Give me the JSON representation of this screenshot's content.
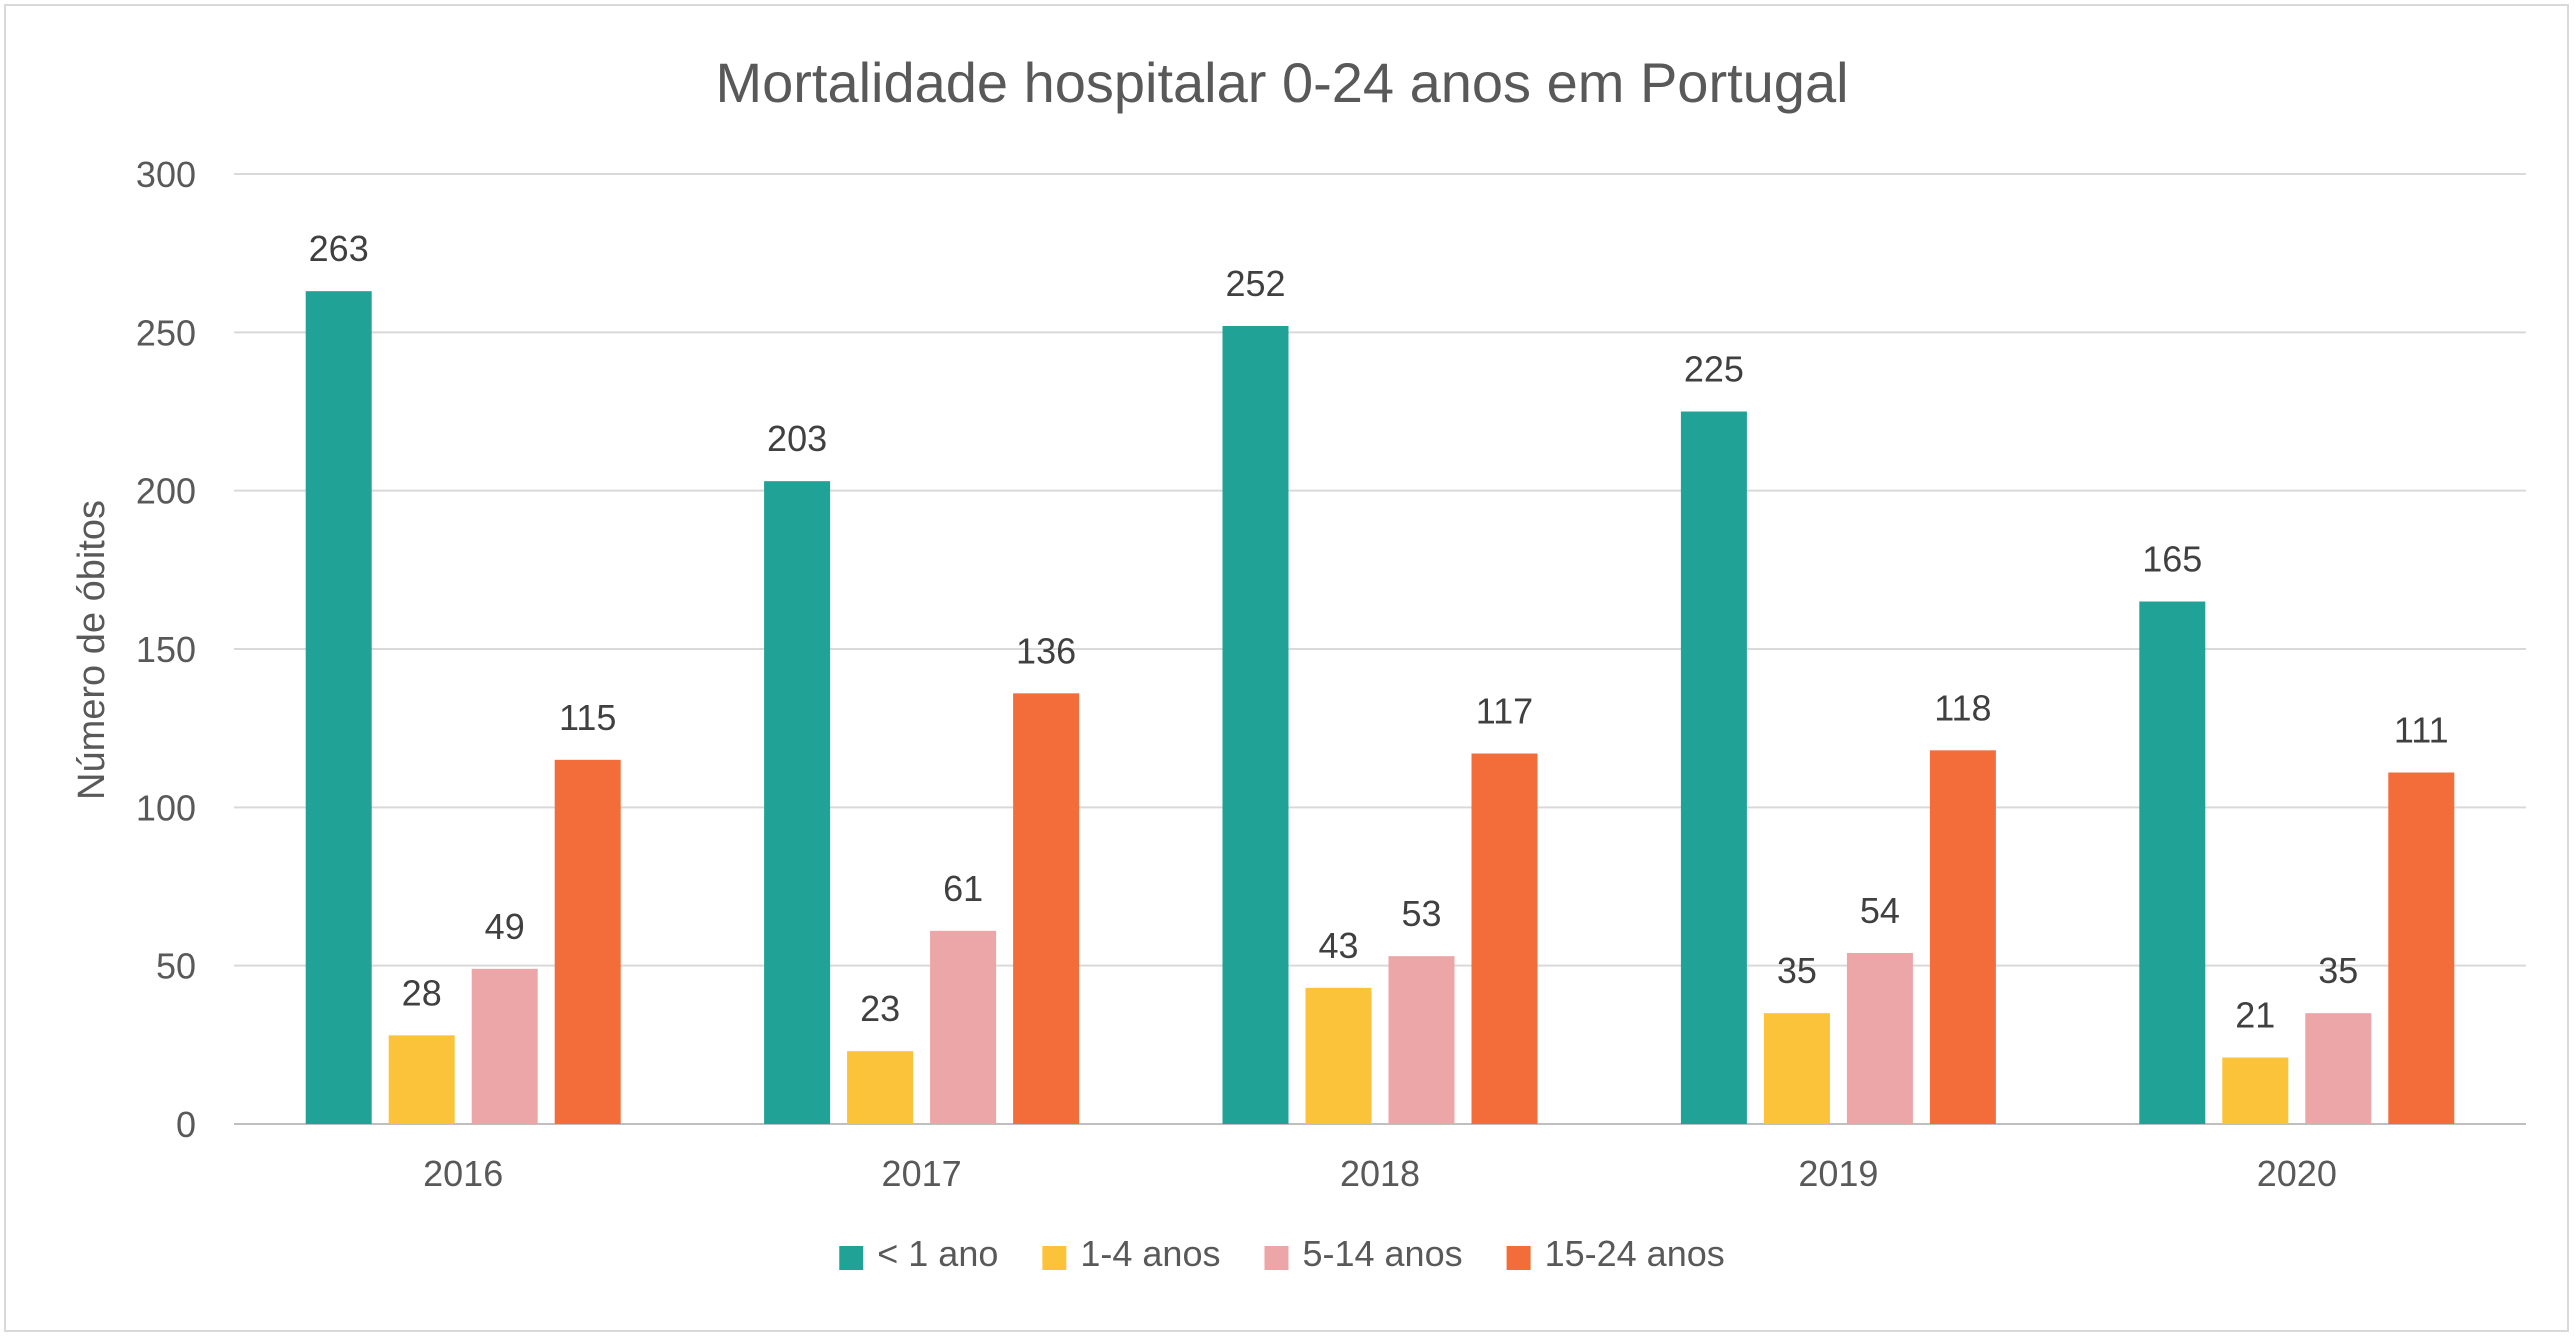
{
  "chart_data": {
    "type": "bar",
    "title": "Mortalidade hospitalar 0-24 anos em Portugal",
    "xlabel": "",
    "ylabel": "Número de óbitos",
    "ylim": [
      0,
      300
    ],
    "yticks": [
      0,
      50,
      100,
      150,
      200,
      250,
      300
    ],
    "grid": true,
    "legend_position": "bottom",
    "categories": [
      "2016",
      "2017",
      "2018",
      "2019",
      "2020"
    ],
    "series": [
      {
        "name": "< 1 ano",
        "color": "#20A396",
        "values": [
          263,
          203,
          252,
          225,
          165
        ]
      },
      {
        "name": "1-4 anos",
        "color": "#FBC33A",
        "values": [
          28,
          23,
          43,
          35,
          21
        ]
      },
      {
        "name": "5-14 anos",
        "color": "#EDA6A8",
        "values": [
          49,
          61,
          53,
          54,
          35
        ]
      },
      {
        "name": "15-24 anos",
        "color": "#F26D3A",
        "values": [
          115,
          136,
          117,
          118,
          111
        ]
      }
    ]
  }
}
